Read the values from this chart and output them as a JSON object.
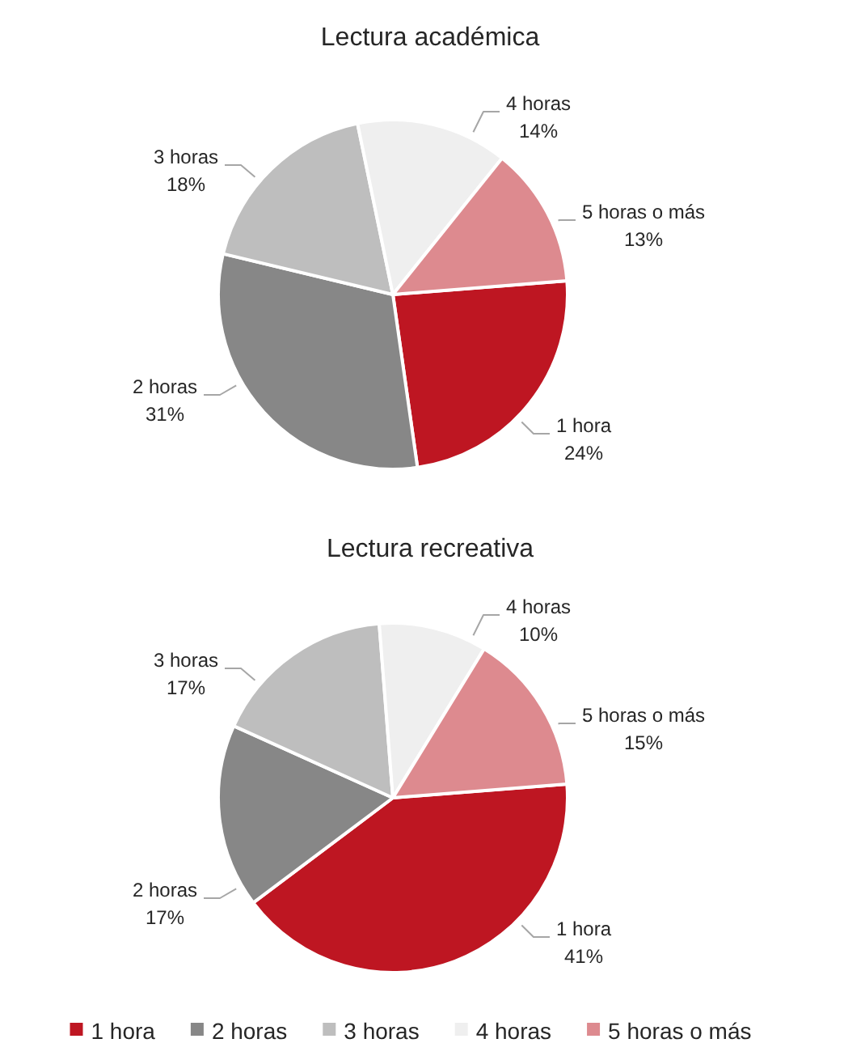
{
  "chart_data": [
    {
      "type": "pie",
      "title": "Lectura académica",
      "categories": [
        "1 hora",
        "2 horas",
        "3 horas",
        "4 horas",
        "5 horas o más"
      ],
      "values": [
        24,
        31,
        18,
        14,
        13
      ],
      "colors": [
        "#be1622",
        "#878787",
        "#bebebe",
        "#efefef",
        "#dd8a8f"
      ],
      "value_labels": [
        "24%",
        "31%",
        "18%",
        "14%",
        "13%"
      ]
    },
    {
      "type": "pie",
      "title": "Lectura recreativa",
      "categories": [
        "1 hora",
        "2 horas",
        "3 horas",
        "4 horas",
        "5 horas o más"
      ],
      "values": [
        41,
        17,
        17,
        10,
        15
      ],
      "colors": [
        "#be1622",
        "#878787",
        "#bebebe",
        "#efefef",
        "#dd8a8f"
      ],
      "value_labels": [
        "41%",
        "17%",
        "17%",
        "10%",
        "15%"
      ],
      "legend": "bottom"
    }
  ]
}
